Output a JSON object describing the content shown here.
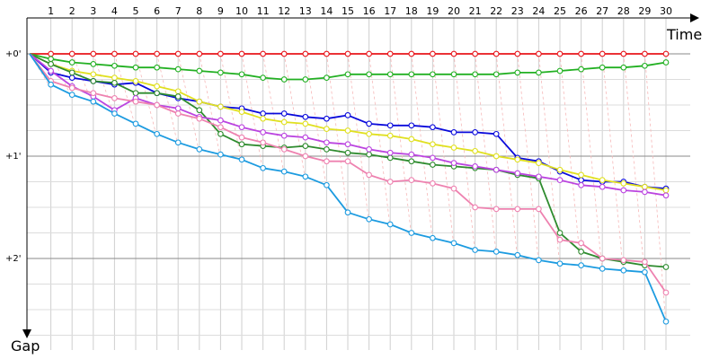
{
  "chart_data": {
    "type": "line",
    "xlabel": "Time",
    "ylabel": "Gap",
    "x": [
      1,
      2,
      3,
      4,
      5,
      6,
      7,
      8,
      9,
      10,
      11,
      12,
      13,
      14,
      15,
      16,
      17,
      18,
      19,
      20,
      21,
      22,
      23,
      24,
      25,
      26,
      27,
      28,
      29,
      30
    ],
    "x_tick_labels": [
      "1",
      "2",
      "3",
      "4",
      "5",
      "6",
      "7",
      "8",
      "9",
      "10",
      "11",
      "12",
      "13",
      "14",
      "15",
      "16",
      "17",
      "18",
      "19",
      "20",
      "21",
      "22",
      "23",
      "24",
      "25",
      "26",
      "27",
      "28",
      "29",
      "30"
    ],
    "y_tick_labels": [
      "+0'",
      "+1'",
      "+2'"
    ],
    "y_ticks": [
      0,
      60,
      120
    ],
    "ylim": [
      0,
      165
    ],
    "xlim": [
      0,
      32
    ],
    "y_inverted": true,
    "grid": true,
    "series": [
      {
        "color": "#e8141a",
        "values": [
          0,
          0,
          0,
          0,
          0,
          0,
          0,
          0,
          0,
          0,
          0,
          0,
          0,
          0,
          0,
          0,
          0,
          0,
          0,
          0,
          0,
          0,
          0,
          0,
          0,
          0,
          0,
          0,
          0,
          0
        ]
      },
      {
        "color": "#22b022",
        "values": [
          3,
          5,
          6,
          7,
          8,
          8,
          9,
          10,
          11,
          12,
          14,
          15,
          15,
          14,
          12,
          12,
          12,
          12,
          12,
          12,
          12,
          12,
          11,
          11,
          10,
          9,
          8,
          8,
          7,
          5
        ]
      },
      {
        "color": "#0a0adb",
        "values": [
          11,
          14,
          16,
          18,
          17,
          23,
          26,
          28,
          31,
          32,
          35,
          35,
          37,
          38,
          36,
          41,
          42,
          42,
          43,
          46,
          46,
          47,
          61,
          63,
          69,
          74,
          75,
          75,
          78,
          79
        ]
      },
      {
        "color": "#e0e020",
        "values": [
          6,
          10,
          12,
          14,
          16,
          19,
          22,
          28,
          31,
          34,
          38,
          40,
          41,
          44,
          45,
          47,
          48,
          50,
          53,
          55,
          57,
          60,
          62,
          64,
          68,
          71,
          74,
          76,
          78,
          80
        ]
      },
      {
        "color": "#2e8b2e",
        "values": [
          6,
          11,
          16,
          17,
          23,
          23,
          25,
          33,
          47,
          53,
          54,
          55,
          54,
          56,
          58,
          59,
          61,
          63,
          65,
          66,
          67,
          68,
          71,
          73,
          105,
          116,
          120,
          122,
          124,
          125
        ]
      },
      {
        "color": "#bb44e0",
        "values": [
          10,
          19,
          25,
          33,
          26,
          30,
          32,
          37,
          39,
          43,
          46,
          48,
          49,
          52,
          53,
          56,
          58,
          59,
          61,
          64,
          66,
          68,
          70,
          72,
          74,
          77,
          78,
          80,
          81,
          83
        ]
      },
      {
        "color": "#ee82b0",
        "values": [
          16,
          20,
          23,
          26,
          28,
          30,
          35,
          38,
          43,
          49,
          52,
          56,
          60,
          63,
          63,
          71,
          75,
          74,
          76,
          79,
          90,
          91,
          91,
          91,
          109,
          111,
          120,
          121,
          122,
          140
        ]
      },
      {
        "color": "#1c9be0",
        "values": [
          18,
          24,
          28,
          35,
          41,
          47,
          52,
          56,
          59,
          62,
          67,
          69,
          72,
          77,
          93,
          97,
          100,
          105,
          108,
          111,
          115,
          116,
          118,
          121,
          123,
          124,
          126,
          127,
          128,
          157
        ]
      }
    ]
  }
}
